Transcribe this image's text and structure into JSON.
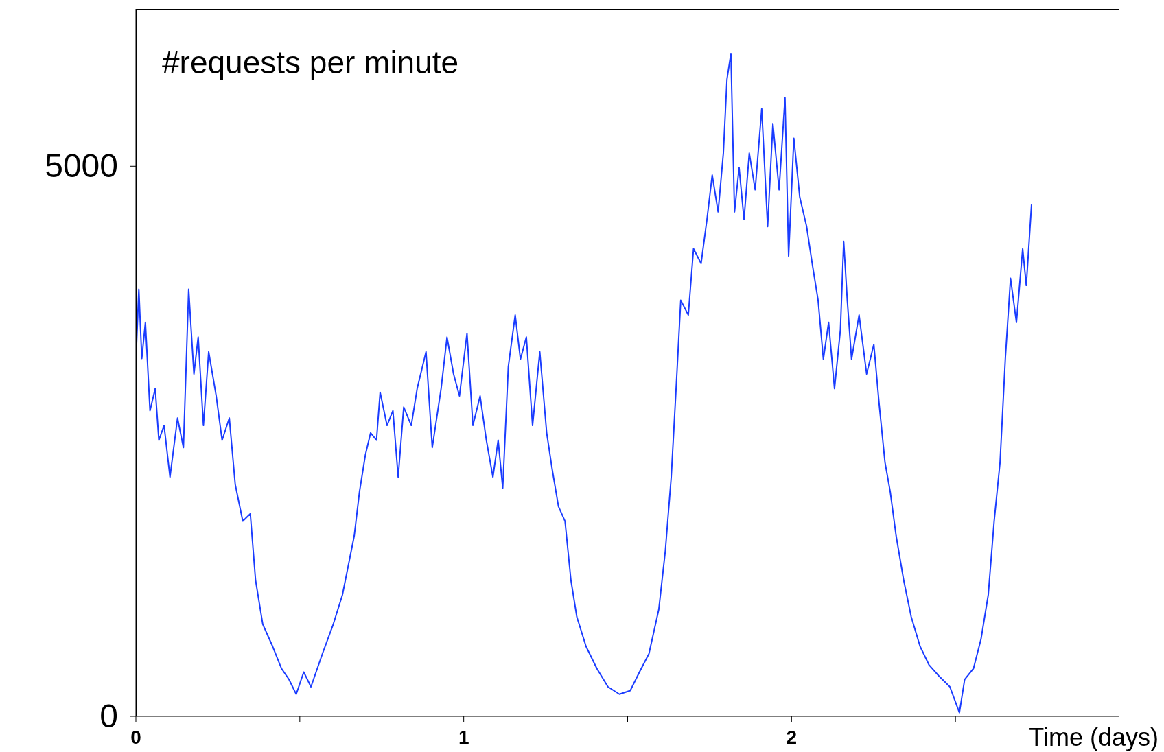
{
  "chart_data": {
    "type": "line",
    "ylabel": "#requests per minute",
    "xlabel": "Time (days)",
    "xlim": [
      0,
      3
    ],
    "xticks": [
      0,
      {
        "value": 0.5,
        "label": null
      },
      1,
      {
        "value": 1.5,
        "label": null
      },
      2,
      {
        "value": 2.5,
        "label": null
      }
    ],
    "ylim": [
      0,
      6430
    ],
    "yticks": [
      0,
      5000
    ],
    "marker": "none",
    "line_style": "solid",
    "x": [
      0.002,
      0.009,
      0.018,
      0.029,
      0.043,
      0.059,
      0.07,
      0.086,
      0.104,
      0.127,
      0.145,
      0.161,
      0.177,
      0.19,
      0.206,
      0.222,
      0.245,
      0.263,
      0.285,
      0.303,
      0.326,
      0.349,
      0.365,
      0.387,
      0.417,
      0.444,
      0.467,
      0.489,
      0.512,
      0.534,
      0.569,
      0.602,
      0.63,
      0.648,
      0.666,
      0.682,
      0.7,
      0.716,
      0.734,
      0.745,
      0.766,
      0.784,
      0.8,
      0.817,
      0.84,
      0.858,
      0.885,
      0.904,
      0.931,
      0.949,
      0.969,
      0.987,
      1.01,
      1.028,
      1.05,
      1.069,
      1.089,
      1.105,
      1.119,
      1.136,
      1.157,
      1.173,
      1.191,
      1.21,
      1.232,
      1.253,
      1.27,
      1.289,
      1.309,
      1.327,
      1.345,
      1.373,
      1.406,
      1.44,
      1.475,
      1.508,
      1.536,
      1.565,
      1.595,
      1.615,
      1.633,
      1.649,
      1.662,
      1.685,
      1.701,
      1.724,
      1.742,
      1.758,
      1.776,
      1.792,
      1.803,
      1.815,
      1.826,
      1.84,
      1.855,
      1.871,
      1.889,
      1.909,
      1.927,
      1.943,
      1.962,
      1.98,
      1.991,
      2.007,
      2.025,
      2.046,
      2.063,
      2.081,
      2.097,
      2.113,
      2.131,
      2.149,
      2.159,
      2.17,
      2.183,
      2.206,
      2.229,
      2.251,
      2.267,
      2.285,
      2.301,
      2.319,
      2.342,
      2.365,
      2.392,
      2.419,
      2.449,
      2.483,
      2.512,
      2.528,
      2.555,
      2.578,
      2.6,
      2.618,
      2.636,
      2.652,
      2.668,
      2.686,
      2.705,
      2.716,
      2.732
    ],
    "series": [
      {
        "color": "#1a3cff",
        "values": [
          3380,
          3882,
          3253,
          3581,
          2778,
          2979,
          2510,
          2644,
          2175,
          2711,
          2443,
          3882,
          3112,
          3447,
          2644,
          3313,
          2912,
          2510,
          2711,
          2108,
          1774,
          1841,
          1238,
          837,
          636,
          435,
          335,
          201,
          402,
          268,
          569,
          837,
          1104,
          1372,
          1640,
          2041,
          2376,
          2577,
          2510,
          2945,
          2644,
          2778,
          2175,
          2811,
          2644,
          2979,
          3313,
          2443,
          2979,
          3447,
          3112,
          2912,
          3481,
          2644,
          2912,
          2510,
          2175,
          2510,
          2075,
          3179,
          3648,
          3246,
          3447,
          2644,
          3313,
          2577,
          2242,
          1908,
          1774,
          1238,
          904,
          636,
          435,
          268,
          201,
          234,
          402,
          569,
          971,
          1506,
          2175,
          3046,
          3782,
          3648,
          4250,
          4116,
          4518,
          4920,
          4585,
          5120,
          5790,
          6024,
          4585,
          4987,
          4518,
          5120,
          4786,
          5522,
          4451,
          5388,
          4786,
          5622,
          4183,
          5254,
          4719,
          4451,
          4116,
          3782,
          3246,
          3581,
          2979,
          3514,
          4317,
          3782,
          3246,
          3648,
          3112,
          3380,
          2845,
          2309,
          2041,
          1640,
          1238,
          904,
          636,
          469,
          368,
          268,
          33,
          335,
          435,
          703,
          1104,
          1774,
          2309,
          3246,
          3982,
          3581,
          4250,
          3916,
          4652
        ]
      }
    ]
  }
}
